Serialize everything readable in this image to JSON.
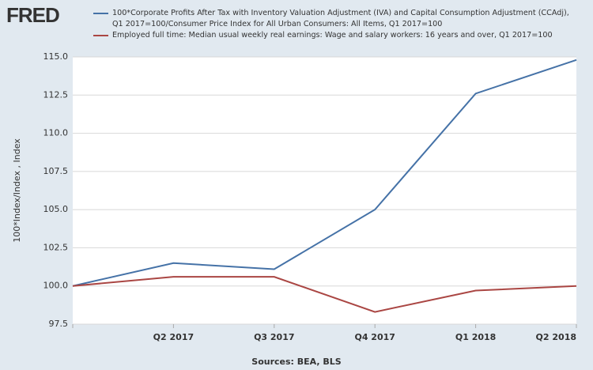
{
  "logo": "FRED",
  "chart_data": {
    "type": "line",
    "y_label": "100*Index/Index , Index",
    "source": "Sources: BEA, BLS",
    "categories": [
      null,
      "Q2 2017",
      "Q3 2017",
      "Q4 2017",
      "Q1 2018",
      "Q2 2018"
    ],
    "series": [
      {
        "name": "100*Corporate Profits After Tax with Inventory Valuation Adjustment (IVA) and Capital Consumption Adjustment (CCAdj), Q1 2017=100/Consumer Price Index for All Urban Consumers: All Items, Q1 2017=100",
        "color": "#4572a7",
        "values": [
          100,
          101.5,
          101.1,
          105.0,
          112.6,
          114.8
        ]
      },
      {
        "name": "Employed full time: Median usual weekly real earnings: Wage and salary workers: 16 years and over, Q1 2017=100",
        "color": "#aa4643",
        "values": [
          100,
          100.6,
          100.6,
          98.3,
          99.7,
          100.0
        ]
      }
    ],
    "ylim": [
      97.5,
      115
    ],
    "yticks": [
      97.5,
      {
        "value": 100,
        "label": "100.0"
      },
      102.5,
      {
        "value": 105,
        "label": "105.0"
      },
      107.5,
      {
        "value": 110,
        "label": "110.0"
      },
      112.5,
      {
        "value": 115,
        "label": "115.0"
      }
    ],
    "grid": true
  }
}
